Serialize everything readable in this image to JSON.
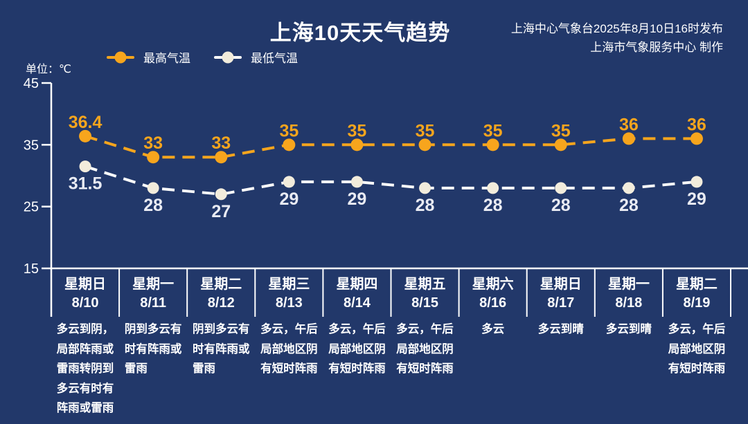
{
  "header": {
    "title": "上海10天天气趋势",
    "source_line1": "上海中心气象台2025年8月10日16时发布",
    "source_line2": "上海市气象服务中心 制作"
  },
  "legend": {
    "max_label": "最高气温",
    "min_label": "最低气温"
  },
  "axis": {
    "unit_label": "单位：℃",
    "ticks": [
      45,
      35,
      25,
      15
    ]
  },
  "colors": {
    "background": "#22386a",
    "max_series": "#f7a51d",
    "min_series_line": "#fdfdfc",
    "min_series_marker": "#f2ecdc",
    "min_value_label": "#e9ebf3",
    "axis_line": "#ffffff",
    "text": "#ffffff"
  },
  "chart_data": {
    "type": "line",
    "title": "上海10天天气趋势",
    "ylabel": "℃",
    "ylim": [
      15,
      45
    ],
    "grid": false,
    "legend_position": "top-left",
    "line_style": "dashed",
    "categories_day": [
      "星期日",
      "星期一",
      "星期二",
      "星期三",
      "星期四",
      "星期五",
      "星期六",
      "星期日",
      "星期一",
      "星期二"
    ],
    "categories_date": [
      "8/10",
      "8/11",
      "8/12",
      "8/13",
      "8/14",
      "8/15",
      "8/16",
      "8/17",
      "8/18",
      "8/19"
    ],
    "series": [
      {
        "name": "最高气温",
        "color": "#f7a51d",
        "values": [
          36.4,
          33,
          33,
          35,
          35,
          35,
          35,
          35,
          36,
          36
        ]
      },
      {
        "name": "最低气温",
        "color": "#f2ecdc",
        "values": [
          31.5,
          28,
          27,
          29,
          29,
          28,
          28,
          28,
          28,
          29
        ]
      }
    ],
    "weather_lines": [
      [
        "多云到阴，",
        "局部阵雨或",
        "雷雨转阴到",
        "多云有时有",
        "阵雨或雷雨"
      ],
      [
        "阴到多云有",
        "时有阵雨或",
        "雷雨"
      ],
      [
        "阴到多云有",
        "时有阵雨或",
        "雷雨"
      ],
      [
        "多云，午后",
        "局部地区阴",
        "有短时阵雨"
      ],
      [
        "多云，午后",
        "局部地区阴",
        "有短时阵雨"
      ],
      [
        "多云，午后",
        "局部地区阴",
        "有短时阵雨"
      ],
      [
        "多云"
      ],
      [
        "多云到晴"
      ],
      [
        "多云到晴"
      ],
      [
        "多云，午后",
        "局部地区阴",
        "有短时阵雨"
      ]
    ]
  }
}
